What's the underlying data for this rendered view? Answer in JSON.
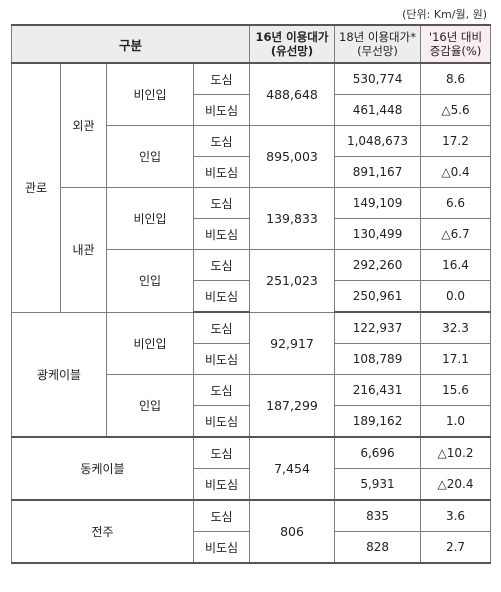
{
  "unit_note": "(단위: Km/월, 원)",
  "header": {
    "category": "구분",
    "col16": "'16년 이용대가 (유선망)",
    "col16_l1": "16년 이용대가",
    "col16_l2": "(유선망)",
    "col18_l1": "18년 이용대가*",
    "col18_l2": "(무선망)",
    "colpct_l1": "'16년 대비",
    "colpct_l2": "증감율(%)"
  },
  "labels": {
    "gwanro": "관로",
    "oegwan": "외관",
    "naegwan": "내관",
    "biinip": "비인입",
    "inip": "인입",
    "dosim": "도심",
    "bidosim": "비도심",
    "gwang": "광케이블",
    "dong": "동케이블",
    "jeonju": "전주"
  },
  "rows": [
    {
      "v16": "488,648",
      "v18": "530,774",
      "pct": "8.6"
    },
    {
      "v18": "461,448",
      "pct": "△5.6"
    },
    {
      "v16": "895,003",
      "v18": "1,048,673",
      "pct": "17.2"
    },
    {
      "v18": "891,167",
      "pct": "△0.4"
    },
    {
      "v16": "139,833",
      "v18": "149,109",
      "pct": "6.6"
    },
    {
      "v18": "130,499",
      "pct": "△6.7"
    },
    {
      "v16": "251,023",
      "v18": "292,260",
      "pct": "16.4"
    },
    {
      "v18": "250,961",
      "pct": "0.0"
    },
    {
      "v16": "92,917",
      "v18": "122,937",
      "pct": "32.3"
    },
    {
      "v18": "108,789",
      "pct": "17.1"
    },
    {
      "v16": "187,299",
      "v18": "216,431",
      "pct": "15.6"
    },
    {
      "v18": "189,162",
      "pct": "1.0"
    },
    {
      "v16": "7,454",
      "v18": "6,696",
      "pct": "△10.2"
    },
    {
      "v18": "5,931",
      "pct": "△20.4"
    },
    {
      "v16": "806",
      "v18": "835",
      "pct": "3.6"
    },
    {
      "v18": "828",
      "pct": "2.7"
    }
  ]
}
